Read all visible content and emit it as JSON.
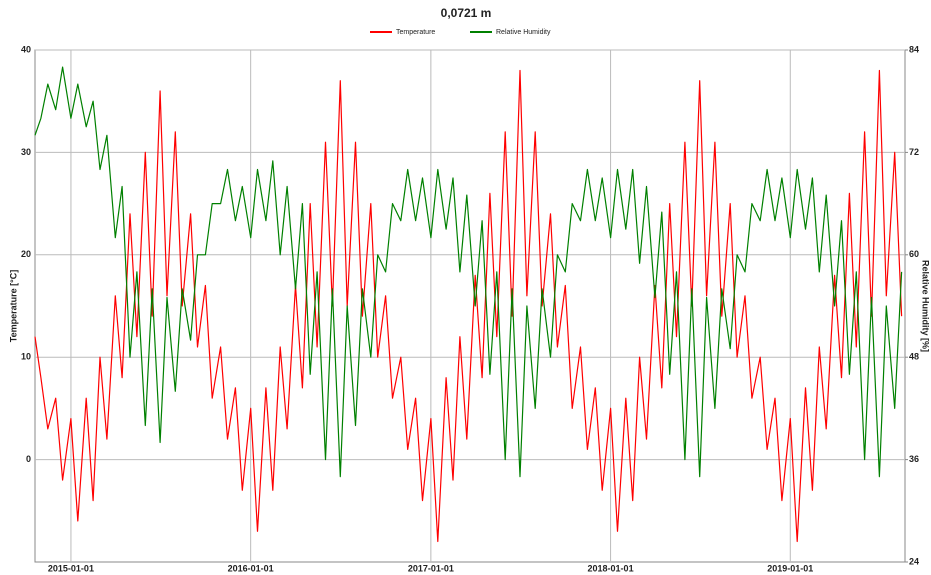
{
  "chart_data": {
    "type": "line",
    "title": "0,0721 m",
    "y_label": "Temperature [°C]",
    "y2_label": "Relative Humidity [%]",
    "xlim": [
      "2014-10-20",
      "2019-08-22"
    ],
    "xticks": [
      "2015-01-01",
      "2016-01-01",
      "2017-01-01",
      "2018-01-01",
      "2019-01-01"
    ],
    "ylim": [
      -10,
      40
    ],
    "yticks": [
      0,
      10,
      20,
      30,
      40
    ],
    "y2lim": [
      24,
      84
    ],
    "y2ticks": [
      24,
      36,
      48,
      60,
      72,
      84
    ],
    "grid": true,
    "legend": "top",
    "x": [
      "2014-10-20",
      "2014-11-01",
      "2014-11-15",
      "2014-12-01",
      "2014-12-15",
      "2015-01-01",
      "2015-01-15",
      "2015-02-01",
      "2015-02-15",
      "2015-03-01",
      "2015-03-15",
      "2015-04-01",
      "2015-04-15",
      "2015-05-01",
      "2015-05-15",
      "2015-06-01",
      "2015-06-15",
      "2015-07-01",
      "2015-07-15",
      "2015-08-01",
      "2015-08-15",
      "2015-09-01",
      "2015-09-15",
      "2015-10-01",
      "2015-10-15",
      "2015-11-01",
      "2015-11-15",
      "2015-12-01",
      "2015-12-15",
      "2016-01-01",
      "2016-01-15",
      "2016-02-01",
      "2016-02-15",
      "2016-03-01",
      "2016-03-15",
      "2016-04-01",
      "2016-04-15",
      "2016-05-01",
      "2016-05-15",
      "2016-06-01",
      "2016-06-15",
      "2016-07-01",
      "2016-07-15",
      "2016-08-01",
      "2016-08-15",
      "2016-09-01",
      "2016-09-15",
      "2016-10-01",
      "2016-10-15",
      "2016-11-01",
      "2016-11-15",
      "2016-12-01",
      "2016-12-15",
      "2017-01-01",
      "2017-01-15",
      "2017-02-01",
      "2017-02-15",
      "2017-03-01",
      "2017-03-15",
      "2017-04-01",
      "2017-04-15",
      "2017-05-01",
      "2017-05-15",
      "2017-06-01",
      "2017-06-15",
      "2017-07-01",
      "2017-07-15",
      "2017-08-01",
      "2017-08-15",
      "2017-09-01",
      "2017-09-15",
      "2017-10-01",
      "2017-10-15",
      "2017-11-01",
      "2017-11-15",
      "2017-12-01",
      "2017-12-15",
      "2018-01-01",
      "2018-01-15",
      "2018-02-01",
      "2018-02-15",
      "2018-03-01",
      "2018-03-15",
      "2018-04-01",
      "2018-04-15",
      "2018-05-01",
      "2018-05-15",
      "2018-06-01",
      "2018-06-15",
      "2018-07-01",
      "2018-07-15",
      "2018-08-01",
      "2018-08-15",
      "2018-09-01",
      "2018-09-15",
      "2018-10-01",
      "2018-10-15",
      "2018-11-01",
      "2018-11-15",
      "2018-12-01",
      "2018-12-15",
      "2019-01-01",
      "2019-01-15",
      "2019-02-01",
      "2019-02-15",
      "2019-03-01",
      "2019-03-15",
      "2019-04-01",
      "2019-04-15",
      "2019-05-01",
      "2019-05-15",
      "2019-06-01",
      "2019-06-15",
      "2019-07-01",
      "2019-07-15",
      "2019-08-01",
      "2019-08-15"
    ],
    "series": [
      {
        "name": "Temperature",
        "color": "#ff0000",
        "axis": "y",
        "values": [
          12,
          8,
          3,
          6,
          -2,
          4,
          -6,
          6,
          -4,
          10,
          2,
          16,
          8,
          24,
          12,
          30,
          14,
          36,
          16,
          32,
          15,
          24,
          11,
          17,
          6,
          11,
          2,
          7,
          -3,
          5,
          -7,
          7,
          -3,
          11,
          3,
          17,
          7,
          25,
          11,
          31,
          15,
          37,
          15,
          31,
          14,
          25,
          10,
          16,
          6,
          10,
          1,
          6,
          -4,
          4,
          -8,
          8,
          -2,
          12,
          2,
          18,
          8,
          26,
          12,
          32,
          14,
          38,
          16,
          32,
          15,
          24,
          11,
          17,
          5,
          11,
          1,
          7,
          -3,
          5,
          -7,
          6,
          -4,
          10,
          2,
          17,
          7,
          25,
          12,
          31,
          15,
          37,
          16,
          31,
          14,
          25,
          10,
          16,
          6,
          10,
          1,
          6,
          -4,
          4,
          -8,
          7,
          -3,
          11,
          3,
          18,
          8,
          26,
          11,
          32,
          14,
          38,
          16,
          30,
          14
        ]
      },
      {
        "name": "Relative Humidity",
        "color": "#008000",
        "axis": "y2",
        "values": [
          74,
          76,
          80,
          77,
          82,
          76,
          80,
          75,
          78,
          70,
          74,
          62,
          68,
          48,
          58,
          40,
          56,
          38,
          55,
          44,
          56,
          50,
          60,
          60,
          66,
          66,
          70,
          64,
          68,
          62,
          70,
          64,
          71,
          60,
          68,
          56,
          66,
          46,
          58,
          36,
          56,
          34,
          54,
          40,
          56,
          48,
          60,
          58,
          66,
          64,
          70,
          64,
          69,
          62,
          70,
          63,
          69,
          58,
          67,
          54,
          64,
          46,
          58,
          36,
          56,
          34,
          54,
          42,
          56,
          48,
          60,
          58,
          66,
          64,
          70,
          64,
          69,
          62,
          70,
          63,
          70,
          59,
          68,
          55,
          65,
          46,
          58,
          36,
          56,
          34,
          55,
          42,
          56,
          49,
          60,
          58,
          66,
          64,
          70,
          64,
          69,
          62,
          70,
          63,
          69,
          58,
          67,
          54,
          64,
          46,
          58,
          36,
          55,
          34,
          54,
          42,
          58
        ]
      }
    ]
  }
}
